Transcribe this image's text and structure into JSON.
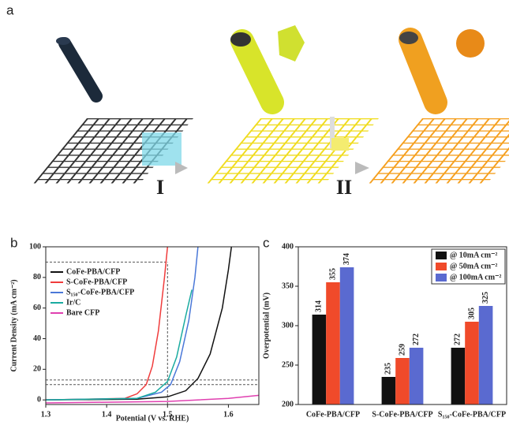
{
  "schematic": {
    "label": "a",
    "steps": [
      "I",
      "II"
    ]
  },
  "chart_data": [
    {
      "type": "line",
      "panel_label": "b",
      "xlabel": "Potential (V vs. RHE)",
      "ylabel": "Current Density (mA cm⁻²)",
      "xlim": [
        1.3,
        1.65
      ],
      "xticks": [
        1.3,
        1.4,
        1.5,
        1.6
      ],
      "ylim": [
        -3,
        100
      ],
      "yticks": [
        0,
        20,
        40,
        60,
        80,
        100
      ],
      "legend": "upper left",
      "series": [
        {
          "name": "CoFe-PBA/CFP",
          "color": "#111111",
          "x": [
            1.3,
            1.45,
            1.5,
            1.53,
            1.55,
            1.57,
            1.59,
            1.6,
            1.605
          ],
          "values": [
            0,
            0.5,
            2,
            6,
            14,
            30,
            60,
            85,
            100
          ]
        },
        {
          "name": "S-CoFe-PBA/CFP",
          "color": "#f03c3c",
          "x": [
            1.3,
            1.43,
            1.45,
            1.465,
            1.475,
            1.485,
            1.495,
            1.5
          ],
          "values": [
            0,
            1,
            4,
            10,
            22,
            45,
            80,
            100
          ]
        },
        {
          "name": "S₁₅₀-CoFe-PBA/CFP",
          "color": "#4a78d8",
          "x": [
            1.3,
            1.45,
            1.49,
            1.505,
            1.52,
            1.535,
            1.545,
            1.55
          ],
          "values": [
            0,
            1,
            5,
            10,
            25,
            52,
            80,
            100
          ]
        },
        {
          "name": "Ir/C",
          "color": "#1aaba0",
          "x": [
            1.3,
            1.45,
            1.48,
            1.5,
            1.515,
            1.53,
            1.54
          ],
          "values": [
            0,
            1,
            5,
            12,
            28,
            55,
            72
          ]
        },
        {
          "name": "Bare CFP",
          "color": "#e040b0",
          "x": [
            1.3,
            1.5,
            1.6,
            1.65
          ],
          "values": [
            -2,
            -1,
            1,
            3
          ]
        }
      ],
      "reference_lines": [
        {
          "x": [
            1.3,
            1.65
          ],
          "y": [
            10,
            10
          ]
        },
        {
          "x": [
            1.3,
            1.65
          ],
          "y": [
            13,
            13
          ]
        },
        {
          "x": [
            1.3,
            1.5
          ],
          "y": [
            90,
            90
          ]
        },
        {
          "x": [
            1.5,
            1.5
          ],
          "y": [
            -3,
            90
          ]
        }
      ]
    },
    {
      "type": "bar",
      "panel_label": "c",
      "ylabel": "Overpotential (mV)",
      "categories": [
        "CoFe-PBA/CFP",
        "S-CoFe-PBA/CFP",
        "S₁₅₀-CoFe-PBA/CFP"
      ],
      "ylim": [
        200,
        400
      ],
      "yticks": [
        200,
        250,
        300,
        350,
        400
      ],
      "legend": "upper right",
      "series": [
        {
          "name": "@ 10mA cm⁻²",
          "color": "#111111",
          "values": [
            314,
            235,
            272
          ]
        },
        {
          "name": "@ 50mA cm⁻²",
          "color": "#f04a2a",
          "values": [
            355,
            259,
            305
          ]
        },
        {
          "name": "@ 100mA cm⁻²",
          "color": "#5a6ad0",
          "values": [
            374,
            272,
            325
          ]
        }
      ]
    }
  ]
}
